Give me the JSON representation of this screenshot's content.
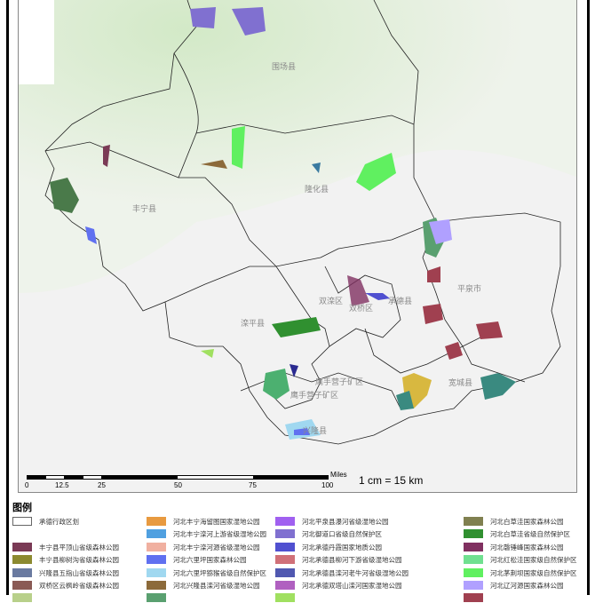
{
  "map": {
    "place_labels": [
      "围场县",
      "隆化县",
      "丰宁县",
      "滦平县",
      "双滦区",
      "双桥区",
      "承德县",
      "平泉市",
      "宽城县",
      "鹰手营子矿区",
      "鹰手营子矿区",
      "兴隆县"
    ]
  },
  "scale": {
    "ticks": [
      "0",
      "12.5",
      "25",
      "50",
      "75",
      "100"
    ],
    "unit": "Miles",
    "ratio": "1 cm = 15 km"
  },
  "legend": {
    "title": "图例",
    "columns": [
      [
        {
          "label": "承德行政区划",
          "color": "#ffffff"
        },
        null,
        {
          "label": "丰宁县平顶山省级森林公园",
          "color": "#7a3a55"
        },
        {
          "label": "丰宁县柳树沟省级森林公园",
          "color": "#8c8a30"
        },
        {
          "label": "兴隆县五指山省级森林公园",
          "color": "#6a7aa0"
        },
        {
          "label": "双桥区云枫岭省级森林公园",
          "color": "#8a5a55"
        },
        {
          "label": "",
          "color": "#b8d08a"
        }
      ],
      [
        {
          "label": "河北丰宁海留图国家湿地公园",
          "color": "#e89a40"
        },
        {
          "label": "河北丰宁滦河上游省级湿地公园",
          "color": "#50a0e0"
        },
        {
          "label": "河北丰宁滦河源省级湿地公园",
          "color": "#f0b0a0"
        },
        {
          "label": "河北六里坪国家森林公园",
          "color": "#6070f0"
        },
        {
          "label": "河北六里坪猕猴省级自然保护区",
          "color": "#a0d8f0"
        },
        {
          "label": "河北兴隆县滦河省级湿地公园",
          "color": "#8c6a3a"
        },
        {
          "label": "",
          "color": "#5aa070"
        }
      ],
      [
        {
          "label": "河北平泉县瀑河省级湿地公园",
          "color": "#a060f0"
        },
        {
          "label": "河北御道口省级自然保护区",
          "color": "#8070d0"
        },
        {
          "label": "河北承德丹霞国家地质公园",
          "color": "#5050d0"
        },
        {
          "label": "河北承德县柳河下游省级湿地公园",
          "color": "#d07078"
        },
        {
          "label": "河北承德县滦河老牛河省级湿地公园",
          "color": "#5058b0"
        },
        {
          "label": "河北承德双塔山滦河国家湿地公园",
          "color": "#b060c0"
        },
        {
          "label": "",
          "color": "#a0e060"
        }
      ],
      [
        {
          "label": "河北白草洼国家森林公园",
          "color": "#808050"
        },
        {
          "label": "河北白草洼省级自然保护区",
          "color": "#309030"
        },
        {
          "label": "河北磬锤峰国家森林公园",
          "color": "#803060"
        },
        {
          "label": "河北红松洼国家级自然保护区",
          "color": "#70e090"
        },
        {
          "label": "河北茅荆坝国家级自然保护区",
          "color": "#60f060"
        },
        {
          "label": "河北辽河源国家森林公园",
          "color": "#b0a0ff"
        },
        {
          "label": "",
          "color": "#a04050"
        }
      ]
    ]
  }
}
